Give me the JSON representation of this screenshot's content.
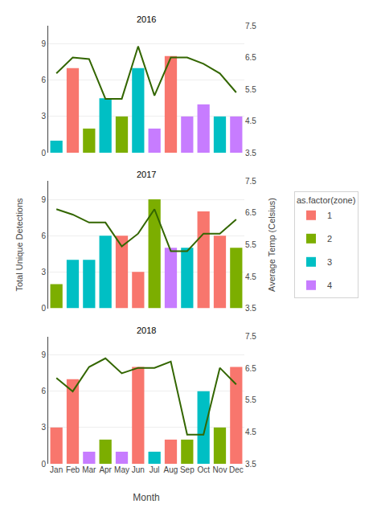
{
  "chart_data": [
    {
      "type": "bar",
      "title": "2016",
      "categories": [
        "Jan",
        "Feb",
        "Mar",
        "Apr",
        "May",
        "Jun",
        "Jul",
        "Aug",
        "Sep",
        "Oct",
        "Nov",
        "Dec"
      ],
      "series": [
        {
          "name": "1",
          "color": "#F8766D",
          "values": [
            null,
            7,
            null,
            null,
            null,
            null,
            null,
            8,
            null,
            null,
            null,
            null
          ]
        },
        {
          "name": "2",
          "color": "#7CAE00",
          "values": [
            null,
            null,
            2,
            null,
            3,
            null,
            null,
            null,
            null,
            null,
            null,
            null
          ]
        },
        {
          "name": "3",
          "color": "#00BFC4",
          "values": [
            1,
            null,
            null,
            4.5,
            null,
            7,
            null,
            null,
            null,
            null,
            3,
            null
          ]
        },
        {
          "name": "4",
          "color": "#C77CFF",
          "values": [
            null,
            null,
            null,
            null,
            null,
            null,
            2,
            null,
            3,
            4,
            null,
            3
          ]
        },
        {
          "type": "line",
          "axis": "y2",
          "color": "#336600",
          "values": [
            6.0,
            6.5,
            6.45,
            5.2,
            5.2,
            6.85,
            5.3,
            6.5,
            6.5,
            6.3,
            6.0,
            5.4
          ]
        }
      ],
      "ylim": [
        0,
        10.5
      ],
      "yticks": [
        0,
        3,
        6,
        9
      ],
      "y2lim": [
        3.5,
        7.5
      ],
      "y2ticks": [
        3.5,
        4.5,
        5.5,
        6.5,
        7.5
      ],
      "grid": true,
      "tick_labels": "y",
      "legend": "right",
      "legend_title": "as.factor(zone)"
    },
    {
      "type": "bar",
      "title": "2017",
      "categories": [
        "Jan",
        "Feb",
        "Mar",
        "Apr",
        "May",
        "Jun",
        "Jul",
        "Aug",
        "Sep",
        "Oct",
        "Nov",
        "Dec"
      ],
      "series": [
        {
          "name": "1",
          "color": "#F8766D",
          "values": [
            null,
            null,
            null,
            null,
            6,
            3,
            null,
            null,
            null,
            8,
            6,
            null
          ]
        },
        {
          "name": "2",
          "color": "#7CAE00",
          "values": [
            2,
            null,
            null,
            null,
            null,
            null,
            9,
            null,
            null,
            null,
            null,
            5
          ]
        },
        {
          "name": "3",
          "color": "#00BFC4",
          "values": [
            null,
            4,
            4,
            6,
            null,
            null,
            null,
            null,
            5,
            null,
            null,
            null
          ]
        },
        {
          "name": "4",
          "color": "#C77CFF",
          "values": [
            null,
            null,
            null,
            null,
            null,
            null,
            null,
            5,
            null,
            null,
            null,
            null
          ]
        },
        {
          "type": "line",
          "axis": "y2",
          "color": "#336600",
          "values": [
            6.62,
            6.45,
            6.2,
            6.2,
            5.45,
            5.85,
            6.62,
            5.3,
            5.3,
            5.85,
            5.85,
            6.3
          ]
        }
      ],
      "ylim": [
        0,
        10.5
      ],
      "yticks": [
        0,
        3,
        6,
        9
      ],
      "y2lim": [
        3.5,
        7.5
      ],
      "y2ticks": [
        3.5,
        4.5,
        5.5,
        6.5,
        7.5
      ],
      "grid": true,
      "tick_labels": "y",
      "ylabel": "Total Unique Detections",
      "y2label": "Average Temp (Celsius)"
    },
    {
      "type": "bar",
      "title": "2018",
      "categories": [
        "Jan",
        "Feb",
        "Mar",
        "Apr",
        "May",
        "Jun",
        "Jul",
        "Aug",
        "Sep",
        "Oct",
        "Nov",
        "Dec"
      ],
      "series": [
        {
          "name": "1",
          "color": "#F8766D",
          "values": [
            3,
            7,
            null,
            null,
            null,
            8,
            null,
            2,
            null,
            null,
            null,
            8
          ]
        },
        {
          "name": "2",
          "color": "#7CAE00",
          "values": [
            null,
            null,
            null,
            2,
            null,
            null,
            null,
            null,
            2,
            null,
            3,
            null
          ]
        },
        {
          "name": "3",
          "color": "#00BFC4",
          "values": [
            null,
            null,
            null,
            null,
            null,
            null,
            1,
            null,
            null,
            6,
            null,
            null
          ]
        },
        {
          "name": "4",
          "color": "#C77CFF",
          "values": [
            null,
            null,
            1,
            null,
            1,
            null,
            null,
            null,
            null,
            null,
            null,
            null
          ]
        },
        {
          "type": "line",
          "axis": "y2",
          "color": "#336600",
          "values": [
            6.2,
            5.78,
            6.55,
            6.82,
            6.35,
            6.52,
            6.52,
            6.72,
            4.42,
            4.42,
            6.52,
            6.0
          ]
        }
      ],
      "ylim": [
        0,
        10.5
      ],
      "yticks": [
        0,
        3,
        6,
        9
      ],
      "y2lim": [
        3.5,
        7.5
      ],
      "y2ticks": [
        3.5,
        4.5,
        5.5,
        6.5,
        7.5
      ],
      "grid": true,
      "xlabel": "Month"
    }
  ]
}
